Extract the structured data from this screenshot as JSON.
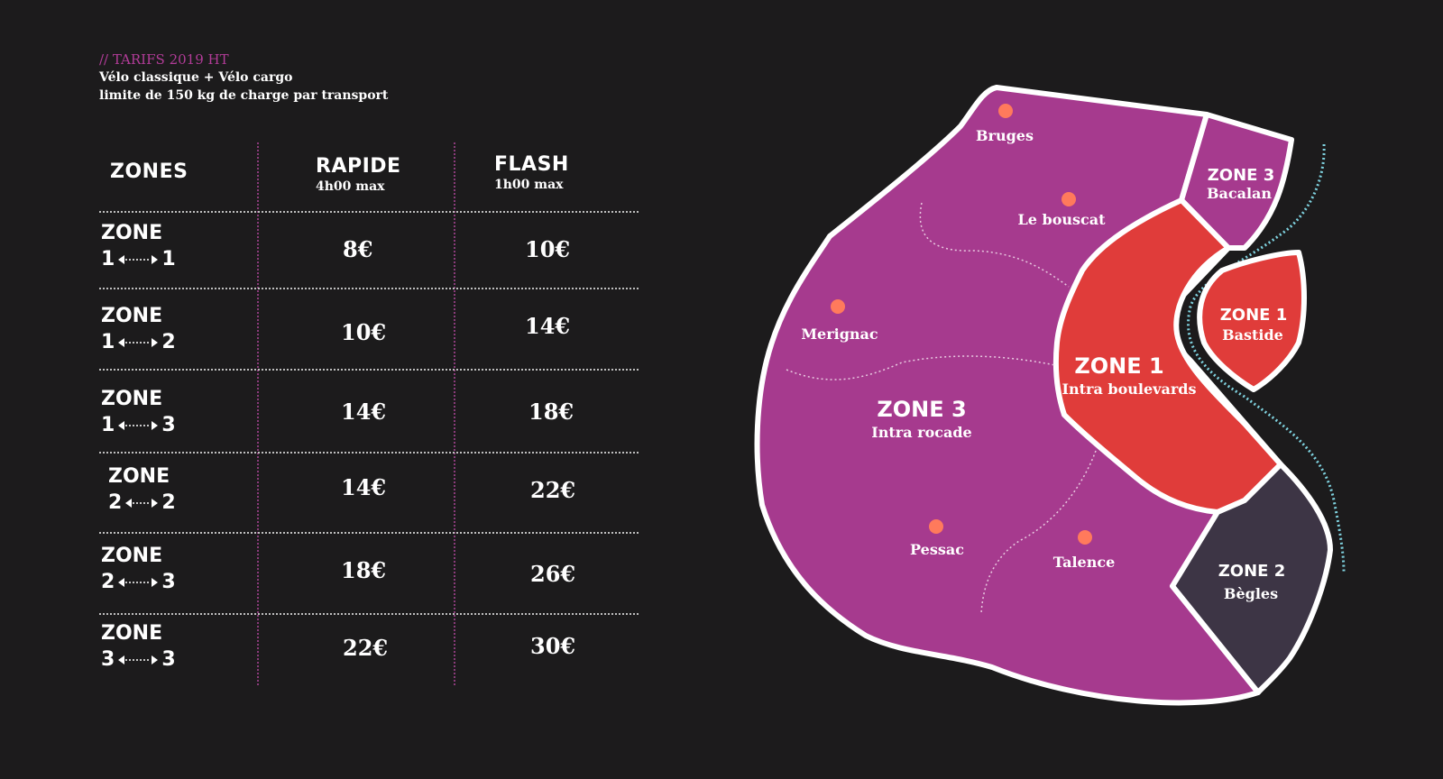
{
  "header": {
    "title": "// TARIFS 2019 HT",
    "line1": "Vélo classique + Vélo cargo",
    "line2": "limite de 150 kg de charge par transport"
  },
  "table": {
    "columns": {
      "zones": "ZONES",
      "rapide": "RAPIDE",
      "rapide_sub": "4h00 max",
      "flash": "FLASH",
      "flash_sub": "1h00 max"
    },
    "rows": [
      {
        "label": "ZONE",
        "from": "1",
        "to": "1",
        "rapide": "8€",
        "flash": "10€"
      },
      {
        "label": "ZONE",
        "from": "1",
        "to": "2",
        "rapide": "10€",
        "flash": "14€"
      },
      {
        "label": "ZONE",
        "from": "1",
        "to": "3",
        "rapide": "14€",
        "flash": "18€"
      },
      {
        "label": "ZONE",
        "from": "2",
        "to": "2",
        "rapide": "14€",
        "flash": "22€"
      },
      {
        "label": "ZONE",
        "from": "2",
        "to": "3",
        "rapide": "18€",
        "flash": "26€"
      },
      {
        "label": "ZONE",
        "from": "3",
        "to": "3",
        "rapide": "22€",
        "flash": "30€"
      }
    ]
  },
  "map": {
    "zones": {
      "zone3_main_title": "ZONE 3",
      "zone3_main_sub": "Intra rocade",
      "zone3_bacalan_title": "ZONE 3",
      "zone3_bacalan_sub": "Bacalan",
      "zone1_center_title": "ZONE 1",
      "zone1_center_sub": "Intra boulevards",
      "zone1_bastide_title": "ZONE 1",
      "zone1_bastide_sub": "Bastide",
      "zone2_title": "ZONE 2",
      "zone2_sub": "Bègles"
    },
    "places": {
      "bruges": "Bruges",
      "lebouscat": "Le bouscat",
      "merignac": "Merignac",
      "pessac": "Pessac",
      "talence": "Talence"
    }
  },
  "colors": {
    "background": "#1c1b1c",
    "zone3": "#a63a8e",
    "zone1": "#e03c3a",
    "zone2": "#3d3545",
    "place_dot": "#ff7a5c",
    "river": "#7fd3e0",
    "title_accent": "#b23c98"
  }
}
